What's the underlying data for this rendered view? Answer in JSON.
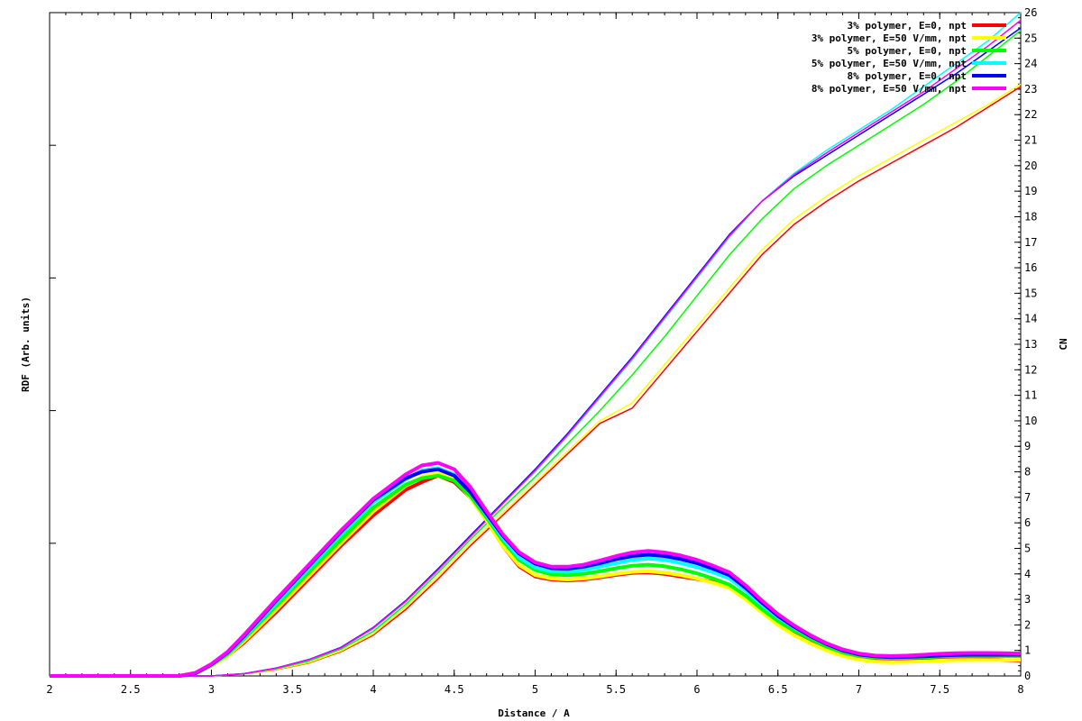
{
  "chart_data": {
    "type": "line",
    "xlabel": "Distance / A",
    "ylabel_left": "RDF (Arb. units)",
    "ylabel_right": "CN",
    "xlim": [
      2,
      8
    ],
    "ylim_right": [
      0,
      26
    ],
    "x_ticks": [
      2,
      2.5,
      3,
      3.5,
      4,
      4.5,
      5,
      5.5,
      6,
      6.5,
      7,
      7.5,
      8
    ],
    "x_tick_labels": [
      "2",
      "2.5",
      "3",
      "3.5",
      "4",
      "4.5",
      "5",
      "5.5",
      "6",
      "6.5",
      "7",
      "7.5",
      "8"
    ],
    "y_right_ticks": [
      0,
      1,
      2,
      3,
      4,
      5,
      6,
      7,
      8,
      9,
      10,
      11,
      12,
      13,
      14,
      15,
      16,
      17,
      18,
      19,
      20,
      21,
      22,
      23,
      24,
      25,
      26
    ],
    "y_right_tick_labels": [
      "0",
      "1",
      "2",
      "3",
      "4",
      "5",
      "6",
      "7",
      "8",
      "9",
      "10",
      "11",
      "12",
      "13",
      "14",
      "15",
      "16",
      "17",
      "18",
      "19",
      "20",
      "21",
      "22",
      "23",
      "24",
      "25",
      "26"
    ],
    "legend_position": "top-right",
    "grid": false,
    "rdf_x": [
      2.0,
      2.8,
      2.9,
      3.0,
      3.1,
      3.2,
      3.4,
      3.6,
      3.8,
      4.0,
      4.2,
      4.3,
      4.4,
      4.5,
      4.6,
      4.7,
      4.8,
      4.9,
      5.0,
      5.1,
      5.2,
      5.3,
      5.4,
      5.5,
      5.6,
      5.7,
      5.8,
      5.9,
      6.0,
      6.1,
      6.2,
      6.3,
      6.4,
      6.5,
      6.6,
      6.7,
      6.8,
      6.9,
      7.0,
      7.1,
      7.2,
      7.3,
      7.4,
      7.5,
      7.6,
      7.7,
      7.8,
      7.9,
      8.0
    ],
    "cn_x": [
      2.0,
      3.0,
      3.2,
      3.4,
      3.6,
      3.8,
      4.0,
      4.2,
      4.4,
      4.6,
      4.8,
      5.0,
      5.2,
      5.4,
      5.6,
      5.8,
      6.0,
      6.2,
      6.4,
      6.6,
      6.8,
      7.0,
      7.2,
      7.4,
      7.6,
      7.8,
      8.0
    ],
    "series": [
      {
        "name": "3% polymer, E=0, npt",
        "color": "#ff0000",
        "rdf": [
          0,
          0,
          0.1,
          0.4,
          0.8,
          1.3,
          2.5,
          3.8,
          5.1,
          6.3,
          7.3,
          7.6,
          7.85,
          7.6,
          7.0,
          6.1,
          5.1,
          4.3,
          3.9,
          3.78,
          3.74,
          3.78,
          3.86,
          3.96,
          4.04,
          4.06,
          4.0,
          3.9,
          3.8,
          3.68,
          3.5,
          3.1,
          2.6,
          2.1,
          1.7,
          1.35,
          1.05,
          0.82,
          0.68,
          0.6,
          0.58,
          0.6,
          0.63,
          0.66,
          0.68,
          0.68,
          0.66,
          0.62,
          0.6
        ],
        "cn": [
          0,
          0,
          0.08,
          0.24,
          0.5,
          0.95,
          1.6,
          2.6,
          3.8,
          5.1,
          6.3,
          7.5,
          8.7,
          9.9,
          10.5,
          12.0,
          13.5,
          15.0,
          16.5,
          17.7,
          18.6,
          19.4,
          20.1,
          20.8,
          21.5,
          22.3,
          23.1
        ]
      },
      {
        "name": "3% polymer, E=50 V/mm, npt",
        "color": "#ffff00",
        "rdf": [
          0,
          0,
          0.1,
          0.4,
          0.8,
          1.35,
          2.6,
          3.9,
          5.2,
          6.45,
          7.45,
          7.8,
          7.95,
          7.7,
          7.0,
          6.1,
          5.1,
          4.35,
          3.95,
          3.82,
          3.78,
          3.82,
          3.9,
          4.0,
          4.08,
          4.1,
          4.05,
          3.95,
          3.82,
          3.65,
          3.45,
          3.0,
          2.5,
          2.0,
          1.6,
          1.28,
          1.0,
          0.78,
          0.64,
          0.56,
          0.54,
          0.55,
          0.57,
          0.6,
          0.62,
          0.63,
          0.62,
          0.63,
          0.63
        ],
        "cn": [
          0,
          0,
          0.08,
          0.25,
          0.52,
          0.98,
          1.65,
          2.7,
          3.9,
          5.2,
          6.4,
          7.6,
          8.8,
          10.0,
          10.7,
          12.2,
          13.7,
          15.2,
          16.7,
          17.9,
          18.8,
          19.6,
          20.3,
          21.0,
          21.7,
          22.4,
          23.2
        ]
      },
      {
        "name": "5% polymer, E=0, npt",
        "color": "#00ff00",
        "rdf": [
          0,
          0,
          0.1,
          0.42,
          0.85,
          1.45,
          2.75,
          4.05,
          5.35,
          6.6,
          7.5,
          7.75,
          7.85,
          7.65,
          7.05,
          6.2,
          5.3,
          4.55,
          4.15,
          3.98,
          3.95,
          4.0,
          4.1,
          4.22,
          4.32,
          4.36,
          4.3,
          4.18,
          4.02,
          3.82,
          3.58,
          3.15,
          2.62,
          2.15,
          1.78,
          1.45,
          1.15,
          0.92,
          0.78,
          0.72,
          0.7,
          0.71,
          0.73,
          0.76,
          0.78,
          0.78,
          0.78,
          0.78,
          0.78
        ],
        "cn": [
          0,
          0,
          0.09,
          0.28,
          0.58,
          1.05,
          1.75,
          2.8,
          4.05,
          5.35,
          6.6,
          7.8,
          9.1,
          10.4,
          11.8,
          13.3,
          14.9,
          16.5,
          17.9,
          19.1,
          20.0,
          20.8,
          21.6,
          22.4,
          23.3,
          24.3,
          25.3
        ]
      },
      {
        "name": "5% polymer, E=50 V/mm, npt",
        "color": "#00ffff",
        "rdf": [
          0,
          0,
          0.1,
          0.44,
          0.9,
          1.5,
          2.85,
          4.2,
          5.55,
          6.8,
          7.7,
          8.05,
          8.15,
          7.9,
          7.2,
          6.3,
          5.4,
          4.65,
          4.25,
          4.1,
          4.08,
          4.15,
          4.28,
          4.42,
          4.55,
          4.6,
          4.55,
          4.42,
          4.26,
          4.06,
          3.82,
          3.35,
          2.8,
          2.3,
          1.9,
          1.55,
          1.25,
          1.0,
          0.84,
          0.77,
          0.74,
          0.75,
          0.77,
          0.8,
          0.82,
          0.83,
          0.83,
          0.83,
          0.83
        ],
        "cn": [
          0,
          0,
          0.09,
          0.3,
          0.62,
          1.1,
          1.85,
          2.9,
          4.15,
          5.45,
          6.75,
          8.0,
          9.4,
          10.9,
          12.4,
          14.0,
          15.6,
          17.2,
          18.6,
          19.7,
          20.6,
          21.4,
          22.2,
          23.1,
          24.0,
          24.9,
          26.0
        ]
      },
      {
        "name": "8% polymer, E=0, npt",
        "color": "#0000ff",
        "rdf": [
          0,
          0,
          0.1,
          0.45,
          0.92,
          1.55,
          2.95,
          4.3,
          5.65,
          6.9,
          7.75,
          8.0,
          8.1,
          7.85,
          7.2,
          6.35,
          5.5,
          4.8,
          4.4,
          4.22,
          4.2,
          4.28,
          4.42,
          4.58,
          4.7,
          4.75,
          4.7,
          4.58,
          4.42,
          4.2,
          3.95,
          3.45,
          2.88,
          2.35,
          1.93,
          1.56,
          1.25,
          1.0,
          0.84,
          0.77,
          0.74,
          0.75,
          0.77,
          0.8,
          0.82,
          0.83,
          0.83,
          0.83,
          0.83
        ],
        "cn": [
          0,
          0,
          0.09,
          0.31,
          0.64,
          1.12,
          1.9,
          2.95,
          4.2,
          5.5,
          6.8,
          8.1,
          9.5,
          11.0,
          12.5,
          14.1,
          15.7,
          17.3,
          18.6,
          19.6,
          20.4,
          21.2,
          22.0,
          22.8,
          23.6,
          24.5,
          25.4
        ]
      },
      {
        "name": "8% polymer, E=50 V/mm, npt",
        "color": "#ff00ff",
        "rdf": [
          0,
          0,
          0.12,
          0.47,
          0.95,
          1.6,
          3.0,
          4.35,
          5.7,
          6.95,
          7.9,
          8.25,
          8.35,
          8.1,
          7.4,
          6.45,
          5.55,
          4.85,
          4.45,
          4.28,
          4.28,
          4.36,
          4.52,
          4.7,
          4.84,
          4.9,
          4.84,
          4.72,
          4.55,
          4.32,
          4.06,
          3.55,
          2.96,
          2.42,
          1.98,
          1.6,
          1.28,
          1.04,
          0.88,
          0.8,
          0.78,
          0.8,
          0.83,
          0.87,
          0.89,
          0.9,
          0.9,
          0.89,
          0.88
        ],
        "cn": [
          0,
          0,
          0.09,
          0.3,
          0.63,
          1.1,
          1.88,
          2.92,
          4.15,
          5.45,
          6.75,
          8.05,
          9.45,
          10.95,
          12.45,
          14.05,
          15.65,
          17.25,
          18.6,
          19.65,
          20.5,
          21.3,
          22.1,
          22.9,
          23.8,
          24.7,
          25.7
        ]
      }
    ]
  }
}
